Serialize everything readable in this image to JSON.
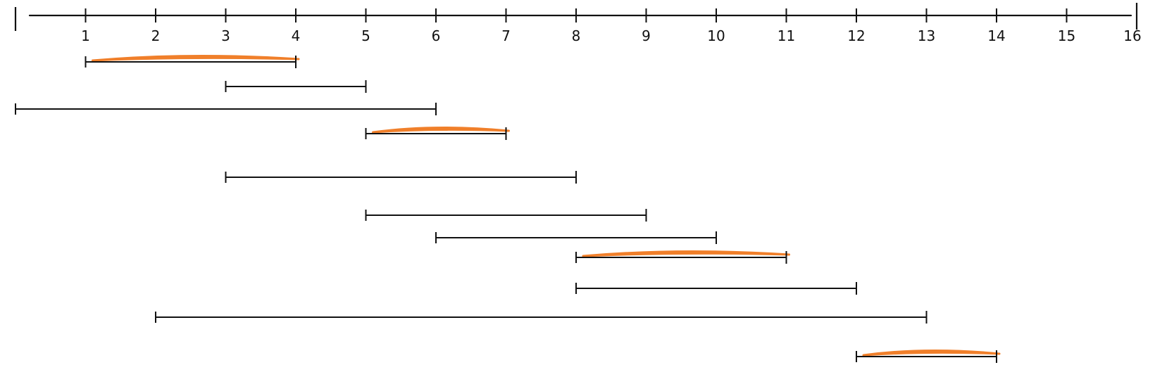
{
  "axis": {
    "min": 0,
    "max": 16,
    "tick_labels": [
      "1",
      "2",
      "3",
      "4",
      "5",
      "6",
      "7",
      "8",
      "9",
      "10",
      "11",
      "12",
      "13",
      "14",
      "15",
      "16"
    ]
  },
  "intervals": [
    {
      "start": 1,
      "end": 4,
      "highlighted": true
    },
    {
      "start": 3,
      "end": 5,
      "highlighted": false
    },
    {
      "start": 0,
      "end": 6,
      "highlighted": false
    },
    {
      "start": 5,
      "end": 7,
      "highlighted": true
    },
    {
      "start": 3,
      "end": 8,
      "highlighted": false
    },
    {
      "start": 5,
      "end": 9,
      "highlighted": false
    },
    {
      "start": 6,
      "end": 10,
      "highlighted": false
    },
    {
      "start": 8,
      "end": 11,
      "highlighted": true
    },
    {
      "start": 8,
      "end": 12,
      "highlighted": false
    },
    {
      "start": 2,
      "end": 13,
      "highlighted": false
    },
    {
      "start": 12,
      "end": 14,
      "highlighted": true
    }
  ],
  "colors": {
    "line": "#111111",
    "highlight": "#f07f2a"
  }
}
